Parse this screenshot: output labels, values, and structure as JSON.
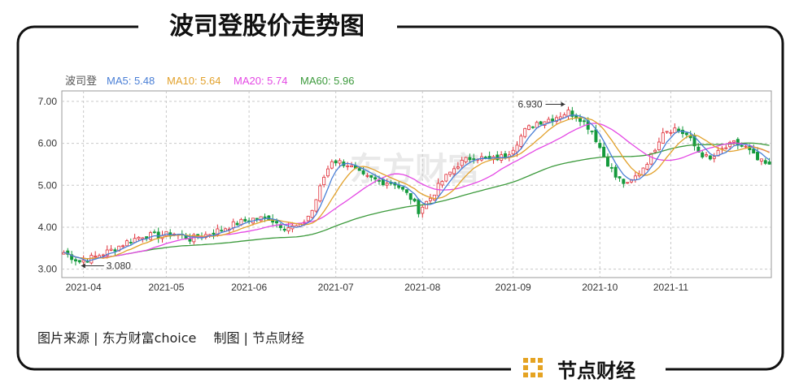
{
  "title": "波司登股价走势图",
  "source": "图片来源 | 东方财富choice　 制图 | 节点财经",
  "brand": {
    "name": "节点财经"
  },
  "watermark": "东方财富",
  "colors": {
    "up": "#e0303a",
    "down": "#149a3c",
    "ma5": "#4a7fd6",
    "ma10": "#e2a12b",
    "ma20": "#e447e4",
    "ma60": "#3c9a3c",
    "brand_gold": "#e5a322"
  },
  "chart_data": {
    "type": "candlestick",
    "stock_label": "波司登",
    "legend": [
      {
        "name": "MA5",
        "value": "5.48",
        "color": "#4a7fd6"
      },
      {
        "name": "MA10",
        "value": "5.64",
        "color": "#e2a12b"
      },
      {
        "name": "MA20",
        "value": "5.74",
        "color": "#e447e4"
      },
      {
        "name": "MA60",
        "value": "5.96",
        "color": "#3c9a3c"
      }
    ],
    "y_ticks": [
      "3.00",
      "4.00",
      "5.00",
      "6.00",
      "7.00"
    ],
    "ylim": [
      2.8,
      7.25
    ],
    "x_ticks": [
      {
        "label": "2021-04",
        "index": 5
      },
      {
        "label": "2021-05",
        "index": 26
      },
      {
        "label": "2021-06",
        "index": 47
      },
      {
        "label": "2021-07",
        "index": 69
      },
      {
        "label": "2021-08",
        "index": 91
      },
      {
        "label": "2021-09",
        "index": 114
      },
      {
        "label": "2021-10",
        "index": 136
      },
      {
        "label": "2021-11",
        "index": 154
      }
    ],
    "n_sessions": 180,
    "anchors": [
      [
        0,
        3.4
      ],
      [
        4,
        3.18
      ],
      [
        8,
        3.3
      ],
      [
        12,
        3.45
      ],
      [
        16,
        3.65
      ],
      [
        20,
        3.8
      ],
      [
        24,
        3.8
      ],
      [
        28,
        3.85
      ],
      [
        32,
        3.72
      ],
      [
        36,
        3.82
      ],
      [
        40,
        3.95
      ],
      [
        44,
        4.1
      ],
      [
        48,
        4.2
      ],
      [
        52,
        4.22
      ],
      [
        56,
        4.0
      ],
      [
        60,
        4.02
      ],
      [
        63,
        4.4
      ],
      [
        66,
        5.2
      ],
      [
        68,
        5.6
      ],
      [
        72,
        5.5
      ],
      [
        76,
        5.2
      ],
      [
        80,
        5.1
      ],
      [
        84,
        5.05
      ],
      [
        88,
        4.7
      ],
      [
        90,
        4.4
      ],
      [
        93,
        4.7
      ],
      [
        96,
        5.1
      ],
      [
        100,
        5.5
      ],
      [
        104,
        5.7
      ],
      [
        108,
        5.6
      ],
      [
        112,
        5.7
      ],
      [
        114,
        5.9
      ],
      [
        117,
        6.3
      ],
      [
        120,
        6.5
      ],
      [
        124,
        6.6
      ],
      [
        128,
        6.75
      ],
      [
        131,
        6.6
      ],
      [
        134,
        6.3
      ],
      [
        137,
        5.7
      ],
      [
        140,
        5.2
      ],
      [
        143,
        5.0
      ],
      [
        146,
        5.3
      ],
      [
        149,
        5.7
      ],
      [
        152,
        6.3
      ],
      [
        155,
        6.35
      ],
      [
        158,
        6.2
      ],
      [
        161,
        5.8
      ],
      [
        164,
        5.6
      ],
      [
        167,
        5.85
      ],
      [
        170,
        6.0
      ],
      [
        173,
        5.9
      ],
      [
        176,
        5.6
      ],
      [
        179,
        5.45
      ]
    ],
    "annotations": [
      {
        "label": "6.930",
        "value": 6.93
      },
      {
        "label": "3.080",
        "value": 3.08
      }
    ]
  }
}
